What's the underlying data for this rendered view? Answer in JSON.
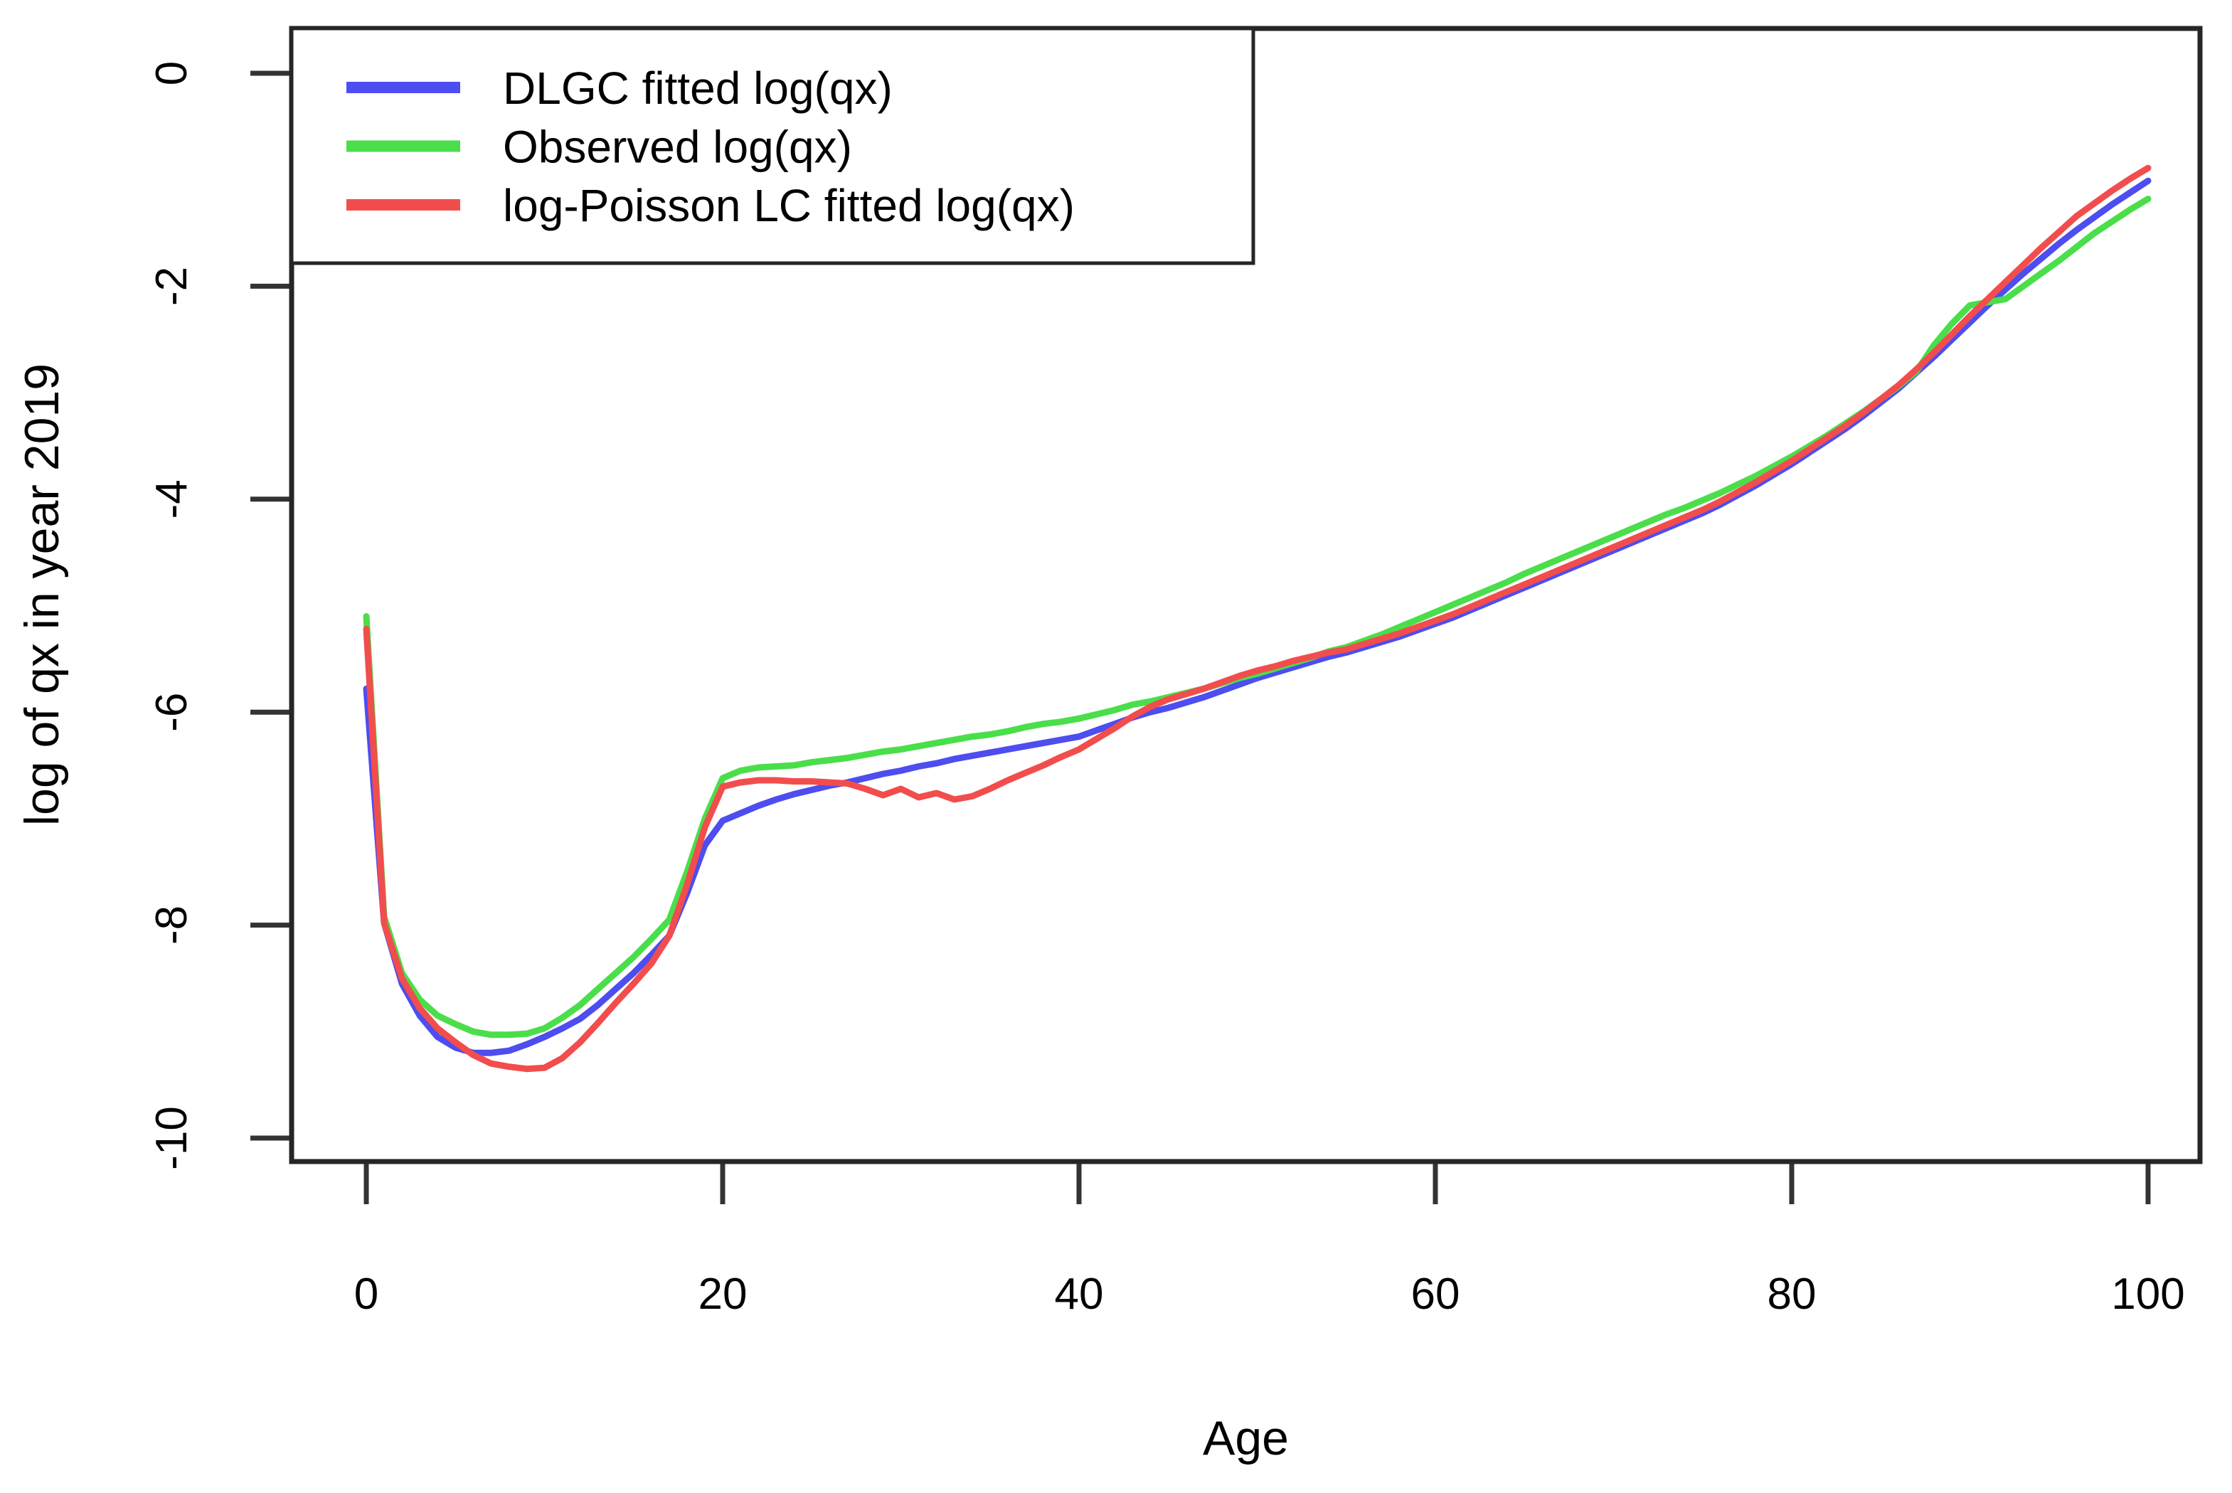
{
  "chart_data": {
    "type": "line",
    "title": "",
    "xlabel": "Age",
    "ylabel": "log of qx in year 2019",
    "x_ticks": [
      0,
      20,
      40,
      60,
      80,
      100
    ],
    "y_ticks": [
      0,
      -2,
      -4,
      -6,
      -8,
      -10
    ],
    "xlim": [
      -4.2,
      102.9
    ],
    "ylim": [
      -10.22,
      0.42
    ],
    "grid": false,
    "legend_position": "top-left",
    "x": [
      0,
      1,
      2,
      3,
      4,
      5,
      6,
      7,
      8,
      9,
      10,
      11,
      12,
      13,
      14,
      15,
      16,
      17,
      18,
      19,
      20,
      21,
      22,
      23,
      24,
      25,
      26,
      27,
      28,
      29,
      30,
      31,
      32,
      33,
      34,
      35,
      36,
      37,
      38,
      39,
      40,
      41,
      42,
      43,
      44,
      45,
      46,
      47,
      48,
      49,
      50,
      51,
      52,
      53,
      54,
      55,
      56,
      57,
      58,
      59,
      60,
      61,
      62,
      63,
      64,
      65,
      66,
      67,
      68,
      69,
      70,
      71,
      72,
      73,
      74,
      75,
      76,
      77,
      78,
      79,
      80,
      81,
      82,
      83,
      84,
      85,
      86,
      87,
      88,
      89,
      90,
      91,
      92,
      93,
      94,
      95,
      96,
      97,
      98,
      99,
      100
    ],
    "series": [
      {
        "name": "DLGC fitted log(qx)",
        "color": "#4d4df0",
        "values": [
          -5.78,
          -7.98,
          -8.55,
          -8.85,
          -9.05,
          -9.15,
          -9.2,
          -9.2,
          -9.18,
          -9.12,
          -9.05,
          -8.97,
          -8.88,
          -8.75,
          -8.6,
          -8.45,
          -8.28,
          -8.1,
          -7.7,
          -7.25,
          -7.02,
          -6.95,
          -6.88,
          -6.82,
          -6.77,
          -6.73,
          -6.69,
          -6.66,
          -6.62,
          -6.58,
          -6.55,
          -6.51,
          -6.48,
          -6.44,
          -6.41,
          -6.38,
          -6.35,
          -6.32,
          -6.29,
          -6.26,
          -6.23,
          -6.17,
          -6.11,
          -6.05,
          -6.0,
          -5.96,
          -5.91,
          -5.86,
          -5.8,
          -5.74,
          -5.68,
          -5.63,
          -5.58,
          -5.53,
          -5.48,
          -5.44,
          -5.39,
          -5.34,
          -5.29,
          -5.23,
          -5.17,
          -5.11,
          -5.04,
          -4.97,
          -4.9,
          -4.83,
          -4.76,
          -4.69,
          -4.62,
          -4.55,
          -4.48,
          -4.41,
          -4.34,
          -4.27,
          -4.2,
          -4.13,
          -4.05,
          -3.96,
          -3.87,
          -3.77,
          -3.67,
          -3.56,
          -3.45,
          -3.34,
          -3.22,
          -3.09,
          -2.96,
          -2.81,
          -2.66,
          -2.5,
          -2.34,
          -2.18,
          -2.03,
          -1.88,
          -1.74,
          -1.6,
          -1.47,
          -1.35,
          -1.23,
          -1.12,
          -1.01
        ]
      },
      {
        "name": "Observed log(qx)",
        "color": "#4ade4a",
        "values": [
          -5.1,
          -7.92,
          -8.45,
          -8.7,
          -8.85,
          -8.93,
          -9.0,
          -9.03,
          -9.03,
          -9.02,
          -8.97,
          -8.87,
          -8.75,
          -8.6,
          -8.45,
          -8.3,
          -8.13,
          -7.95,
          -7.5,
          -7.0,
          -6.62,
          -6.55,
          -6.52,
          -6.51,
          -6.5,
          -6.47,
          -6.45,
          -6.43,
          -6.4,
          -6.37,
          -6.35,
          -6.32,
          -6.29,
          -6.26,
          -6.23,
          -6.21,
          -6.18,
          -6.14,
          -6.11,
          -6.09,
          -6.06,
          -6.02,
          -5.98,
          -5.93,
          -5.9,
          -5.86,
          -5.82,
          -5.78,
          -5.73,
          -5.68,
          -5.64,
          -5.59,
          -5.54,
          -5.49,
          -5.43,
          -5.39,
          -5.33,
          -5.27,
          -5.2,
          -5.13,
          -5.06,
          -4.99,
          -4.92,
          -4.85,
          -4.78,
          -4.7,
          -4.63,
          -4.56,
          -4.49,
          -4.42,
          -4.35,
          -4.28,
          -4.21,
          -4.14,
          -4.08,
          -4.01,
          -3.94,
          -3.86,
          -3.78,
          -3.69,
          -3.6,
          -3.5,
          -3.4,
          -3.29,
          -3.18,
          -3.06,
          -2.94,
          -2.8,
          -2.55,
          -2.35,
          -2.18,
          -2.15,
          -2.12,
          -2.0,
          -1.88,
          -1.76,
          -1.63,
          -1.5,
          -1.39,
          -1.28,
          -1.18
        ]
      },
      {
        "name": "log-Poisson LC fitted log(qx)",
        "color": "#f24d4d",
        "values": [
          -5.22,
          -7.98,
          -8.5,
          -8.78,
          -8.97,
          -9.1,
          -9.22,
          -9.3,
          -9.33,
          -9.35,
          -9.34,
          -9.25,
          -9.1,
          -8.92,
          -8.73,
          -8.55,
          -8.36,
          -8.1,
          -7.62,
          -7.08,
          -6.7,
          -6.66,
          -6.64,
          -6.64,
          -6.65,
          -6.65,
          -6.66,
          -6.67,
          -6.72,
          -6.78,
          -6.72,
          -6.8,
          -6.76,
          -6.82,
          -6.79,
          -6.72,
          -6.64,
          -6.57,
          -6.5,
          -6.42,
          -6.35,
          -6.25,
          -6.15,
          -6.04,
          -5.95,
          -5.88,
          -5.83,
          -5.78,
          -5.72,
          -5.66,
          -5.61,
          -5.57,
          -5.52,
          -5.48,
          -5.44,
          -5.41,
          -5.36,
          -5.31,
          -5.26,
          -5.2,
          -5.14,
          -5.08,
          -5.01,
          -4.94,
          -4.87,
          -4.8,
          -4.73,
          -4.66,
          -4.59,
          -4.52,
          -4.45,
          -4.38,
          -4.31,
          -4.24,
          -4.17,
          -4.1,
          -4.02,
          -3.93,
          -3.84,
          -3.74,
          -3.64,
          -3.53,
          -3.42,
          -3.31,
          -3.19,
          -3.06,
          -2.93,
          -2.78,
          -2.62,
          -2.45,
          -2.28,
          -2.12,
          -1.96,
          -1.8,
          -1.64,
          -1.49,
          -1.34,
          -1.22,
          -1.1,
          -0.99,
          -0.89
        ]
      }
    ]
  },
  "colors": {
    "frame": "#262626",
    "tick": "#333333",
    "text": "#000000",
    "background": "#ffffff"
  }
}
